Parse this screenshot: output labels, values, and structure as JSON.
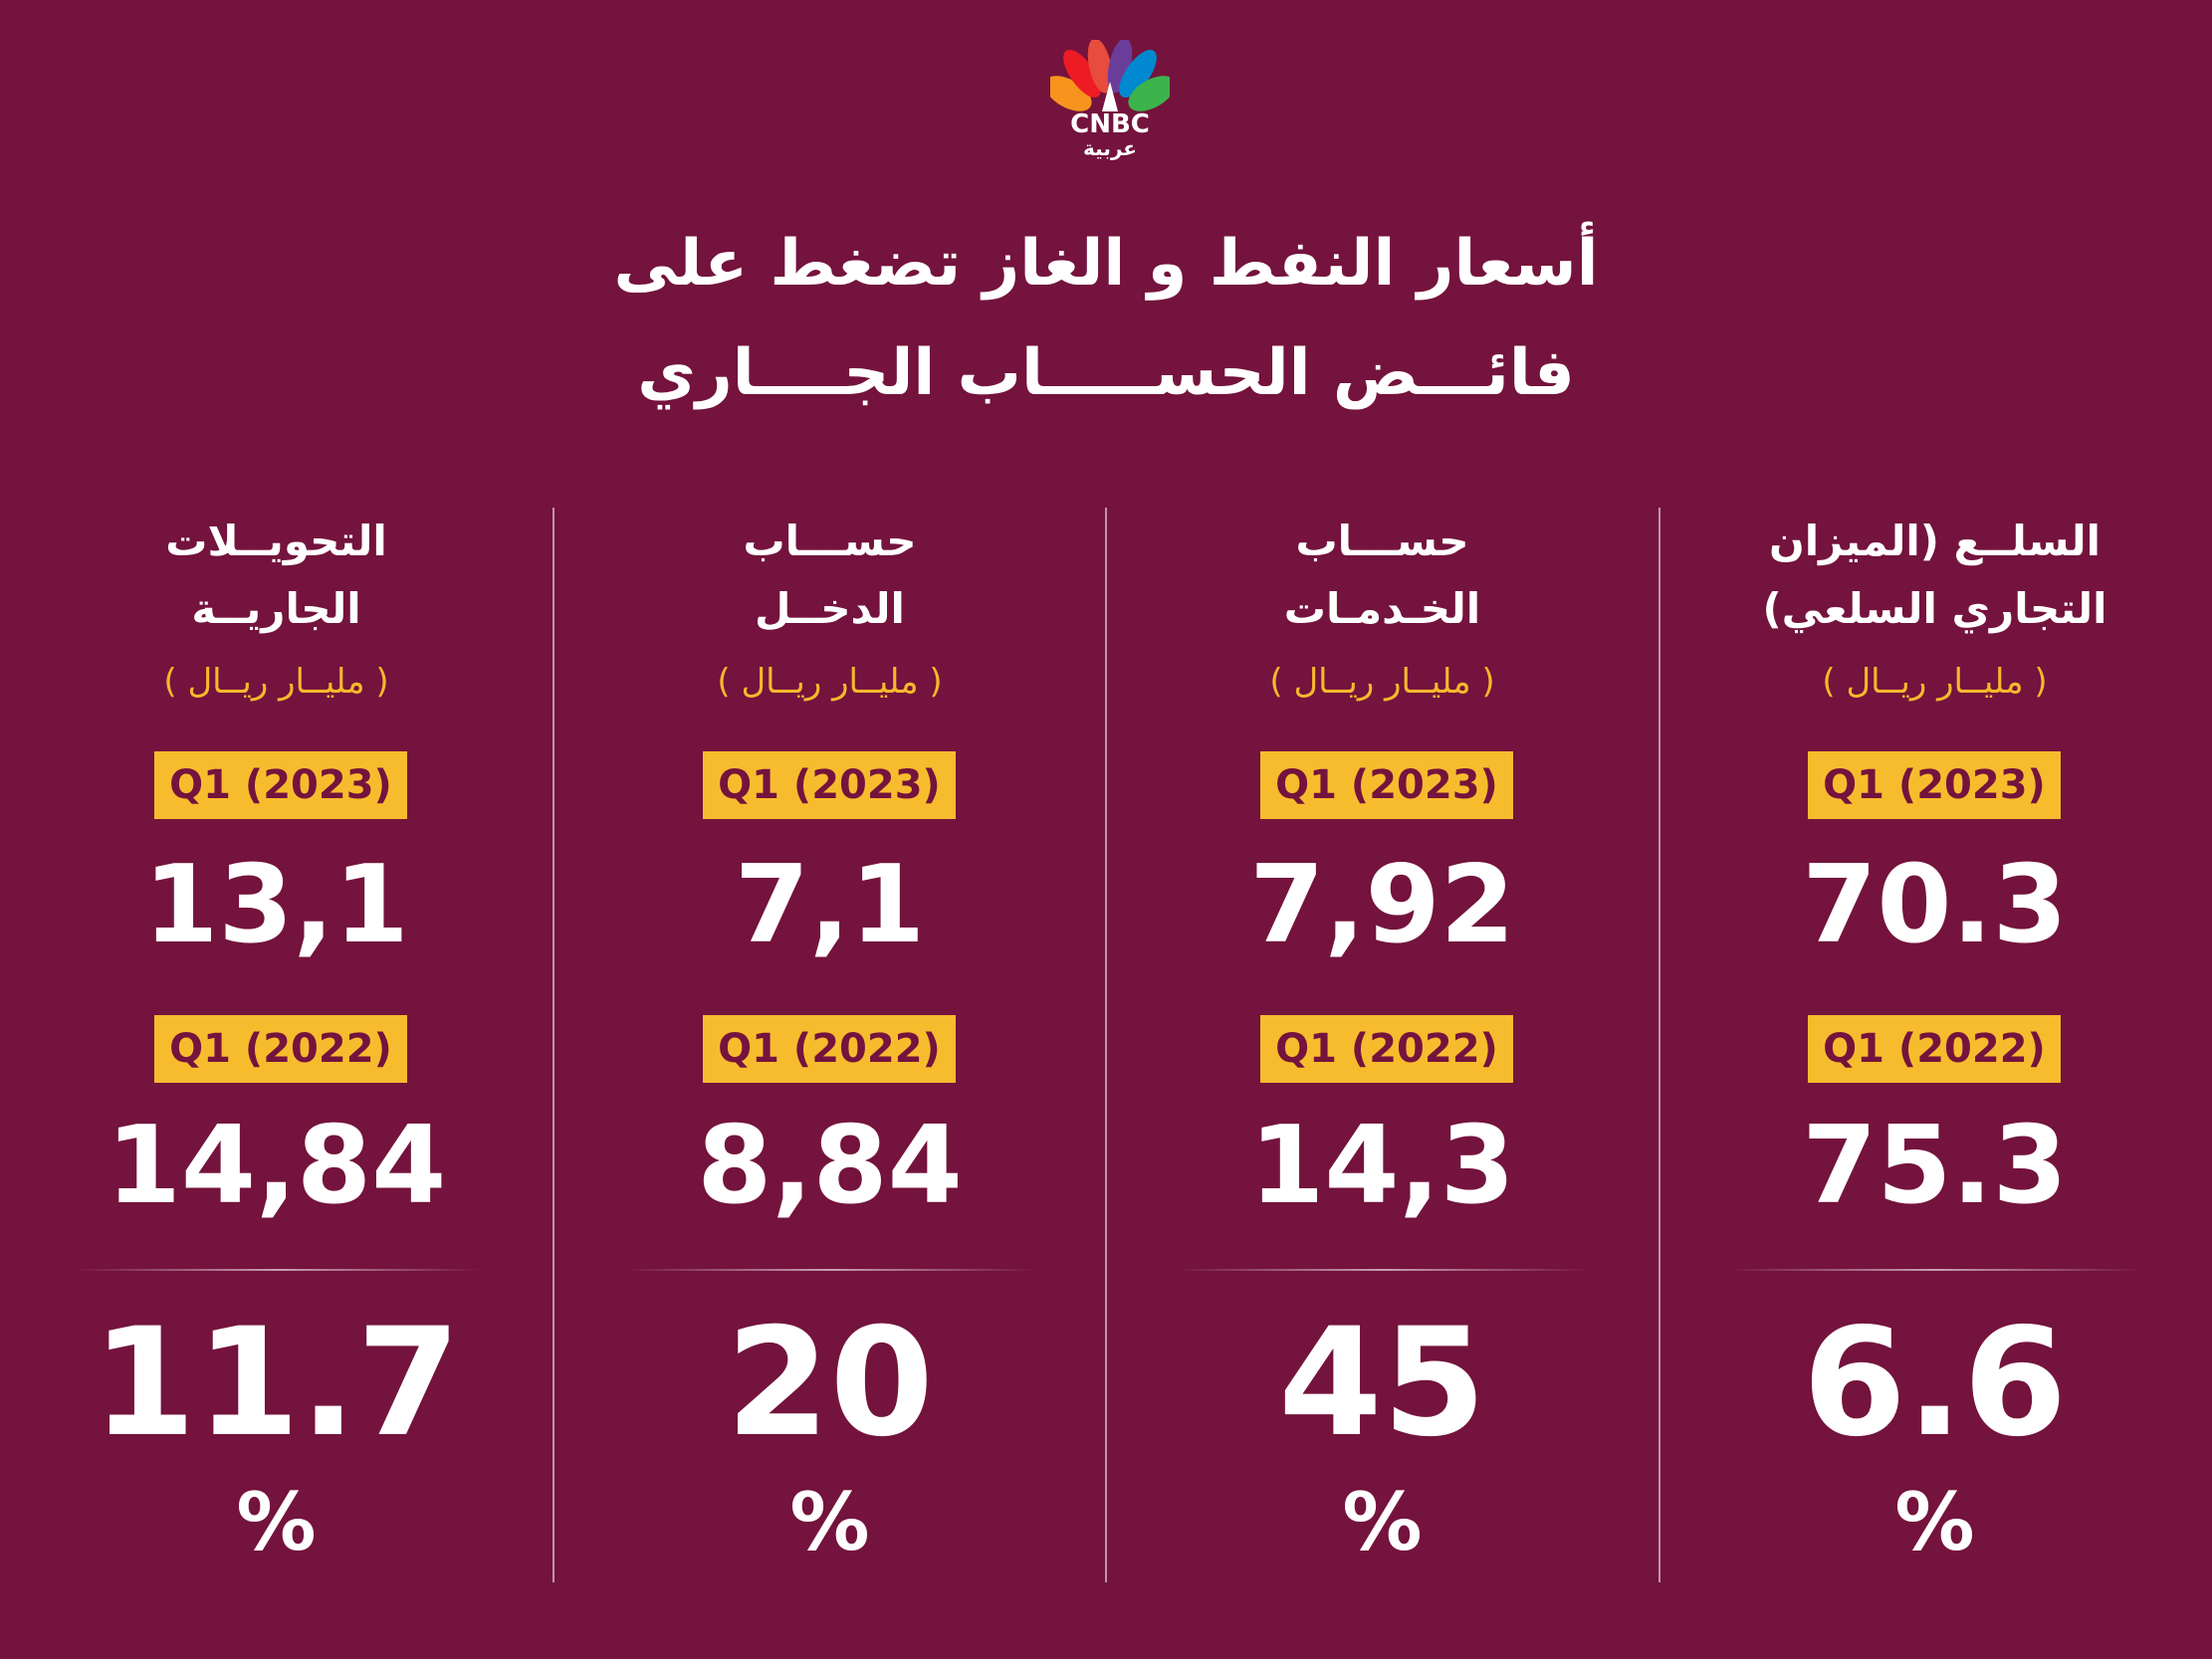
{
  "logo": {
    "brand": "CNBC",
    "brand_ar": "عربية"
  },
  "title": {
    "line1": "أسعار النفط و الغاز تضغط على",
    "line2": "فائـــض  الحســـــاب الجــــاري"
  },
  "columns": [
    {
      "head_line1": "السلــع (الميزان",
      "head_line2": "التجاري السلعي)",
      "unit": "( مليــار ريــال )",
      "badge_2023": "Q1 (2023)",
      "value_2023": "70.3",
      "badge_2022": "Q1 (2022)",
      "value_2022": "75.3",
      "percent": "6.6",
      "percent_sign": "%"
    },
    {
      "head_line1": "حســـاب",
      "head_line2": "الخـدمـات",
      "unit": "( مليــار ريــال )",
      "badge_2023": "Q1 (2023)",
      "value_2023": "7,92",
      "badge_2022": "Q1 (2022)",
      "value_2022": "14,3",
      "percent": "45",
      "percent_sign": "%"
    },
    {
      "head_line1": "حســـاب",
      "head_line2": "الدخــل",
      "unit": "( مليــار ريــال )",
      "badge_2023": "Q1 (2023)",
      "value_2023": "7,1",
      "badge_2022": "Q1 (2022)",
      "value_2022": "8,84",
      "percent": "20",
      "percent_sign": "%"
    },
    {
      "head_line1": "التحويــلات",
      "head_line2": "الجاريــة",
      "unit": "( مليــار ريــال )",
      "badge_2023": "Q1 (2023)",
      "value_2023": "13,1",
      "badge_2022": "Q1 (2022)",
      "value_2022": "14,84",
      "percent": "11.7",
      "percent_sign": "%"
    }
  ],
  "colors": {
    "background": "#74133d",
    "accent": "#f7bc2e",
    "text": "#ffffff",
    "unit_text": "#f5b92c"
  }
}
